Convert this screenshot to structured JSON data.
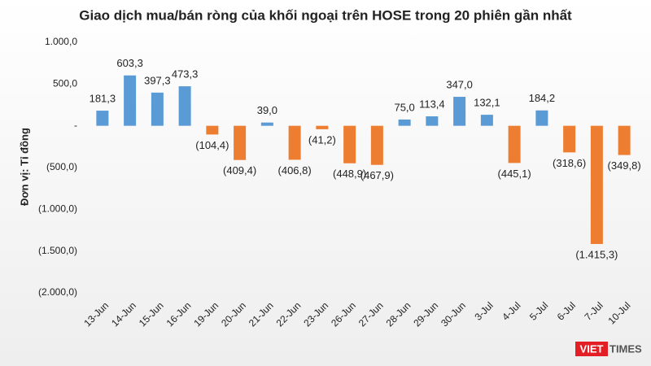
{
  "chart_data": {
    "type": "bar",
    "title": "Giao dịch mua/bán ròng của khối ngoại trên HOSE trong 20 phiên gần nhất",
    "y_label": "Đơn vị: Tỉ đồng",
    "categories": [
      "13-Jun",
      "14-Jun",
      "15-Jun",
      "16-Jun",
      "19-Jun",
      "20-Jun",
      "21-Jun",
      "22-Jun",
      "23-Jun",
      "26-Jun",
      "27-Jun",
      "28-Jun",
      "29-Jun",
      "30-Jun",
      "3-Jul",
      "4-Jul",
      "5-Jul",
      "6-Jul",
      "7-Jul",
      "10-Jul"
    ],
    "values": [
      181.3,
      603.3,
      397.3,
      473.3,
      -104.4,
      -409.4,
      39.0,
      -406.8,
      -41.2,
      -448.9,
      -467.9,
      75.0,
      113.4,
      347.0,
      132.1,
      -445.1,
      184.2,
      -318.6,
      -1415.3,
      -349.8
    ],
    "value_labels": [
      "181,3",
      "603,3",
      "397,3",
      "473,3",
      "(104,4)",
      "(409,4)",
      "39,0",
      "(406,8)",
      "(41,2)",
      "(448,9)",
      "(467,9)",
      "75,0",
      "113,4",
      "347,0",
      "132,1",
      "(445,1)",
      "184,2",
      "(318,6)",
      "(1.415,3)",
      "(349,8)"
    ],
    "positive_color": "#5b9bd5",
    "negative_color": "#ed7d31",
    "ylim": [
      -2000,
      1000
    ],
    "yticks": [
      {
        "value": 1000,
        "label": "1.000,0"
      },
      {
        "value": 500,
        "label": "500,0"
      },
      {
        "value": 0,
        "label": "-"
      },
      {
        "value": -500,
        "label": "(500,0)"
      },
      {
        "value": -1000,
        "label": "(1.000,0)"
      },
      {
        "value": -1500,
        "label": "(1.500,0)"
      },
      {
        "value": -2000,
        "label": "(2.000,0)"
      }
    ],
    "grid": false,
    "logo": {
      "left": "VIET",
      "right": "TIMES"
    }
  }
}
